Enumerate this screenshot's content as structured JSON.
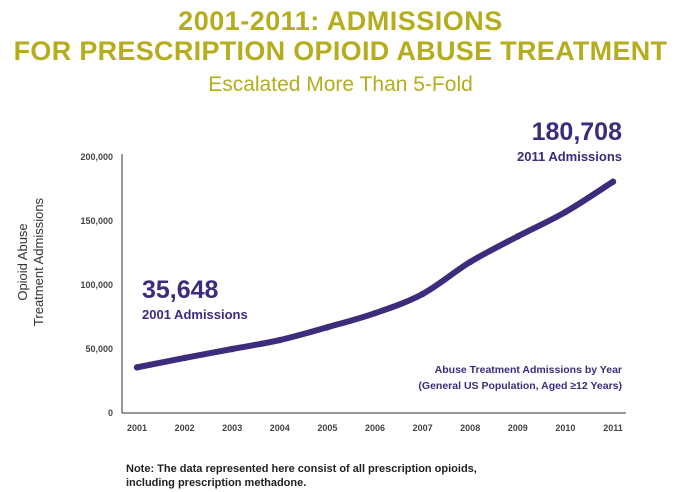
{
  "header": {
    "title_line1": "2001-2011: ADMISSIONS",
    "title_line2": "FOR PRESCRIPTION OPIOID ABUSE TREATMENT",
    "subtitle": "Escalated More Than 5-Fold"
  },
  "colors": {
    "title": "#b5ad1e",
    "series": "#3d2b7c"
  },
  "chart_data": {
    "type": "line",
    "title": "2001-2011: ADMISSIONS FOR PRESCRIPTION OPIOID ABUSE TREATMENT",
    "subtitle": "Escalated More Than 5-Fold",
    "ylabel_lines": [
      "Opioid Abuse",
      "Treatment Admissions"
    ],
    "xlabel": "",
    "x": [
      "2001",
      "2002",
      "2003",
      "2004",
      "2005",
      "2006",
      "2007",
      "2008",
      "2009",
      "2010",
      "2011"
    ],
    "y_ticks": [
      0,
      50000,
      100000,
      150000,
      200000
    ],
    "y_tick_labels": [
      "0",
      "50,000",
      "100,000",
      "150,000",
      "200,000"
    ],
    "ylim": [
      0,
      200000
    ],
    "grid": false,
    "legend_position": "bottom-right",
    "series": [
      {
        "name": "Abuse Treatment Admissions by Year",
        "values": [
          35648,
          43000,
          50000,
          57000,
          67000,
          78000,
          93000,
          118000,
          138000,
          157000,
          180708
        ]
      }
    ],
    "legend_lines": [
      "Abuse Treatment Admissions by Year",
      "(General US Population, Aged ≥12 Years)"
    ],
    "annotations": [
      {
        "value": "35,648",
        "label": "2001 Admissions"
      },
      {
        "value": "180,708",
        "label": "2011 Admissions"
      }
    ]
  },
  "note": {
    "line1": "Note: The data represented here consist of all prescription opioids,",
    "line2": "including prescription methadone."
  }
}
